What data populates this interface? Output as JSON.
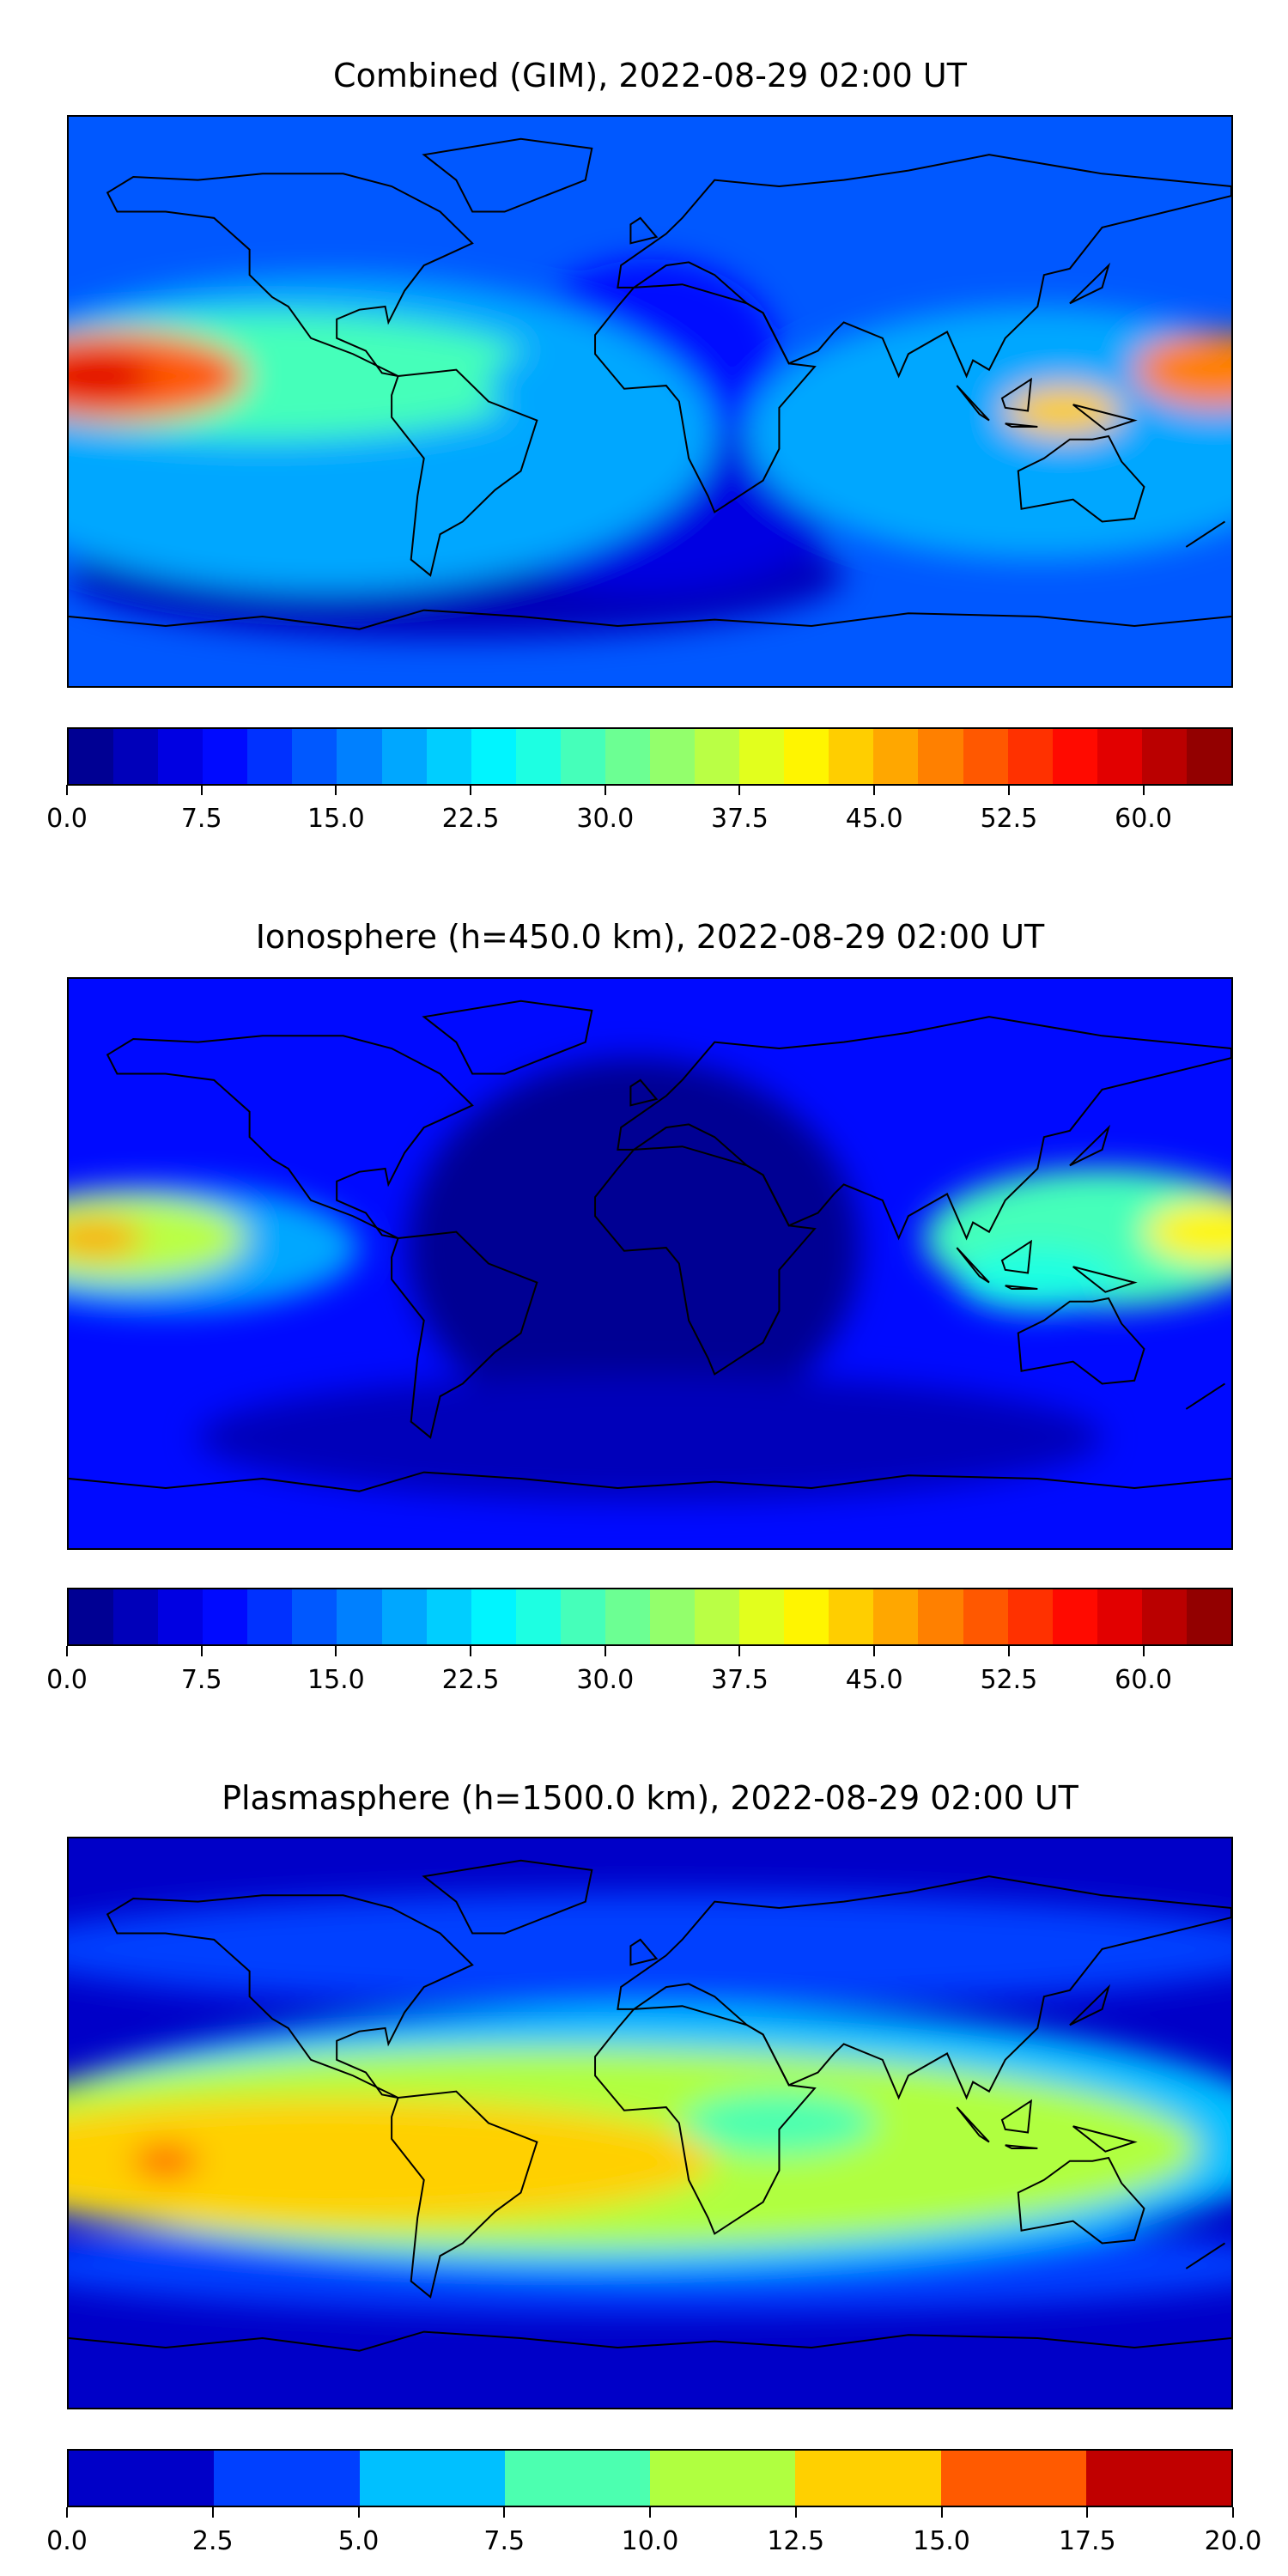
{
  "chart_data": [
    {
      "type": "heatmap",
      "title": "Combined (GIM), 2022-08-29 02:00 UT",
      "colorbar": {
        "min": 0,
        "max": 65,
        "step": 2.5,
        "colormap": "jet",
        "ticks": [
          "0.0",
          "7.5",
          "15.0",
          "22.5",
          "30.0",
          "37.5",
          "45.0",
          "52.5",
          "60.0"
        ]
      },
      "features": [
        {
          "name": "Pacific maximum west",
          "lon": -170,
          "lat": 8,
          "value": 60
        },
        {
          "name": "Pacific maximum east",
          "lon": 178,
          "lat": 10,
          "value": 55
        },
        {
          "name": "Indonesia maximum",
          "lon": 128,
          "lat": -3,
          "value": 45
        }
      ]
    },
    {
      "type": "heatmap",
      "title": "Ionosphere  (h=450.0 km), 2022-08-29 02:00 UT",
      "colorbar": {
        "min": 0,
        "max": 65,
        "step": 2.5,
        "colormap": "jet",
        "ticks": [
          "0.0",
          "7.5",
          "15.0",
          "22.5",
          "30.0",
          "37.5",
          "45.0",
          "52.5",
          "60.0"
        ]
      },
      "features": [
        {
          "name": "Pacific maximum west",
          "lon": -172,
          "lat": 8,
          "value": 47
        },
        {
          "name": "Pacific maximum east",
          "lon": 178,
          "lat": 10,
          "value": 45
        },
        {
          "name": "Atlantic/Africa minimum",
          "lon": 0,
          "lat": 0,
          "value": 2
        }
      ]
    },
    {
      "type": "heatmap",
      "title": "Plasmasphere (h=1500.0 km), 2022-08-29 02:00 UT",
      "colorbar": {
        "min": 0,
        "max": 20,
        "step": 2.5,
        "colormap": "jet",
        "ticks": [
          "0.0",
          "2.5",
          "5.0",
          "7.5",
          "10.0",
          "12.5",
          "15.0",
          "17.5",
          "20.0"
        ],
        "colors": [
          "#0000c8",
          "#0040ff",
          "#00c0ff",
          "#4cffb0",
          "#b0ff40",
          "#ffd000",
          "#ff5a00",
          "#c00000"
        ]
      },
      "features": [
        {
          "name": "Pacific maximum",
          "lon": -150,
          "lat": -12,
          "value": 16
        },
        {
          "name": "South America maximum",
          "lon": -60,
          "lat": -10,
          "value": 14
        }
      ]
    }
  ]
}
